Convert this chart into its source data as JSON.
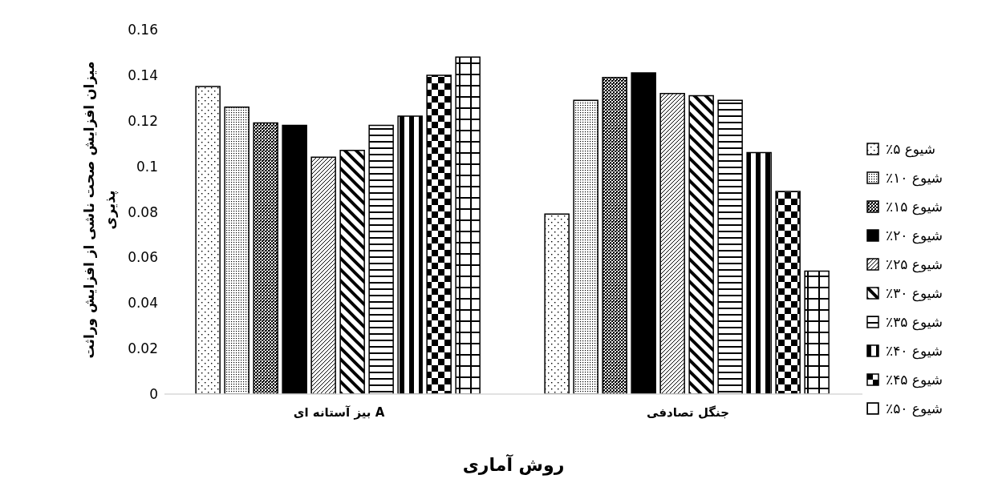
{
  "chart_data": {
    "type": "bar",
    "xlabel": "روش آماری",
    "ylabel": "میزان افزایش صحت ناشی از افزایش وراثت پذیری",
    "categories": [
      "بیز آستانه ای A",
      "جنگل تصادفی"
    ],
    "series": [
      {
        "name": "شیوع ۵٪",
        "color": "#000000",
        "values": [
          0.135,
          0.079
        ]
      },
      {
        "name": "شیوع ۱۰٪",
        "color": "#000000",
        "values": [
          0.126,
          0.129
        ]
      },
      {
        "name": "شیوع ۱۵٪",
        "color": "#000000",
        "values": [
          0.119,
          0.139
        ]
      },
      {
        "name": "شیوع ۲۰٪",
        "color": "#000000",
        "values": [
          0.118,
          0.141
        ]
      },
      {
        "name": "شیوع ۲۵٪",
        "color": "#000000",
        "values": [
          0.104,
          0.132
        ]
      },
      {
        "name": "شیوع ۳۰٪",
        "color": "#000000",
        "values": [
          0.107,
          0.131
        ]
      },
      {
        "name": "شیوع ۳۵٪",
        "color": "#000000",
        "values": [
          0.118,
          0.129
        ]
      },
      {
        "name": "شیوع ۴۰٪",
        "color": "#000000",
        "values": [
          0.122,
          0.106
        ]
      },
      {
        "name": "شیوع ۴۵٪",
        "color": "#000000",
        "values": [
          0.14,
          0.089
        ]
      },
      {
        "name": "شیوع ۵۰٪",
        "color": "#000000",
        "values": [
          0.148,
          0.054
        ]
      }
    ],
    "ylim": [
      0,
      0.16
    ],
    "yticks": [
      0,
      0.02,
      0.04,
      0.06,
      0.08,
      0.1,
      0.12,
      0.14,
      0.16
    ],
    "legend": "right"
  }
}
